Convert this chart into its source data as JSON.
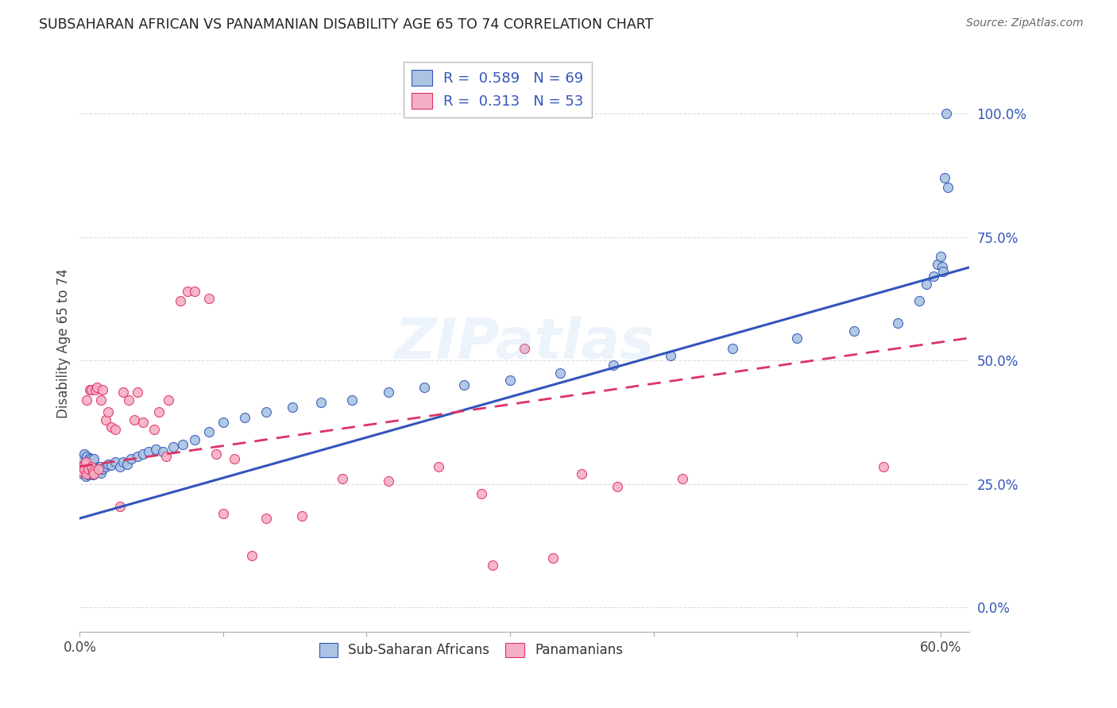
{
  "title": "SUBSAHARAN AFRICAN VS PANAMANIAN DISABILITY AGE 65 TO 74 CORRELATION CHART",
  "source": "Source: ZipAtlas.com",
  "ylabel": "Disability Age 65 to 74",
  "xlim": [
    0.0,
    0.62
  ],
  "ylim": [
    -0.05,
    1.12
  ],
  "yticks": [
    0.0,
    0.25,
    0.5,
    0.75,
    1.0
  ],
  "ytick_labels": [
    "0.0%",
    "25.0%",
    "50.0%",
    "75.0%",
    "100.0%"
  ],
  "xticks": [
    0.0,
    0.1,
    0.2,
    0.3,
    0.4,
    0.5,
    0.6
  ],
  "xtick_labels": [
    "0.0%",
    "",
    "",
    "",
    "",
    "",
    "60.0%"
  ],
  "blue_R": 0.589,
  "blue_N": 69,
  "pink_R": 0.313,
  "pink_N": 53,
  "legend_label_blue": "Sub-Saharan Africans",
  "legend_label_pink": "Panamanians",
  "blue_color": "#aac4e2",
  "pink_color": "#f5afc4",
  "blue_line_color": "#3355bb",
  "pink_line_color": "#dd3366",
  "background_color": "#ffffff",
  "grid_color": "#dddddd",
  "blue_line_intercept": 0.18,
  "blue_line_slope": 0.82,
  "pink_line_intercept": 0.285,
  "pink_line_slope": 0.42,
  "blue_scatter_x": [
    0.001,
    0.002,
    0.002,
    0.003,
    0.003,
    0.004,
    0.004,
    0.005,
    0.005,
    0.006,
    0.006,
    0.007,
    0.007,
    0.008,
    0.008,
    0.009,
    0.009,
    0.01,
    0.01,
    0.011,
    0.012,
    0.013,
    0.014,
    0.015,
    0.016,
    0.018,
    0.02,
    0.022,
    0.025,
    0.028,
    0.03,
    0.033,
    0.036,
    0.04,
    0.044,
    0.048,
    0.053,
    0.058,
    0.065,
    0.072,
    0.08,
    0.09,
    0.1,
    0.115,
    0.13,
    0.148,
    0.168,
    0.19,
    0.215,
    0.24,
    0.268,
    0.3,
    0.335,
    0.372,
    0.412,
    0.455,
    0.5,
    0.54,
    0.57,
    0.585,
    0.59,
    0.595,
    0.598,
    0.6,
    0.601,
    0.602,
    0.603,
    0.604,
    0.605
  ],
  "blue_scatter_y": [
    0.285,
    0.27,
    0.3,
    0.28,
    0.31,
    0.265,
    0.295,
    0.275,
    0.305,
    0.268,
    0.298,
    0.272,
    0.302,
    0.27,
    0.3,
    0.268,
    0.298,
    0.27,
    0.3,
    0.275,
    0.28,
    0.275,
    0.285,
    0.272,
    0.28,
    0.285,
    0.29,
    0.288,
    0.295,
    0.285,
    0.295,
    0.29,
    0.3,
    0.305,
    0.31,
    0.315,
    0.32,
    0.315,
    0.325,
    0.33,
    0.34,
    0.355,
    0.375,
    0.385,
    0.395,
    0.405,
    0.415,
    0.42,
    0.435,
    0.445,
    0.45,
    0.46,
    0.475,
    0.49,
    0.51,
    0.525,
    0.545,
    0.56,
    0.575,
    0.62,
    0.655,
    0.67,
    0.695,
    0.71,
    0.69,
    0.68,
    0.87,
    1.0,
    0.85
  ],
  "pink_scatter_x": [
    0.001,
    0.002,
    0.003,
    0.003,
    0.004,
    0.005,
    0.005,
    0.006,
    0.007,
    0.008,
    0.008,
    0.009,
    0.01,
    0.011,
    0.012,
    0.013,
    0.015,
    0.016,
    0.018,
    0.02,
    0.022,
    0.025,
    0.03,
    0.034,
    0.038,
    0.044,
    0.052,
    0.062,
    0.075,
    0.09,
    0.108,
    0.13,
    0.155,
    0.183,
    0.215,
    0.25,
    0.288,
    0.33,
    0.375,
    0.42,
    0.06,
    0.04,
    0.028,
    0.08,
    0.07,
    0.1,
    0.055,
    0.095,
    0.12,
    0.28,
    0.31,
    0.35,
    0.56
  ],
  "pink_scatter_y": [
    0.285,
    0.275,
    0.29,
    0.28,
    0.295,
    0.27,
    0.42,
    0.28,
    0.44,
    0.285,
    0.44,
    0.275,
    0.27,
    0.44,
    0.445,
    0.28,
    0.42,
    0.44,
    0.38,
    0.395,
    0.365,
    0.36,
    0.435,
    0.42,
    0.38,
    0.375,
    0.36,
    0.42,
    0.64,
    0.625,
    0.3,
    0.18,
    0.185,
    0.26,
    0.255,
    0.285,
    0.085,
    0.1,
    0.245,
    0.26,
    0.305,
    0.435,
    0.205,
    0.64,
    0.62,
    0.19,
    0.395,
    0.31,
    0.105,
    0.23,
    0.525,
    0.27,
    0.285
  ]
}
